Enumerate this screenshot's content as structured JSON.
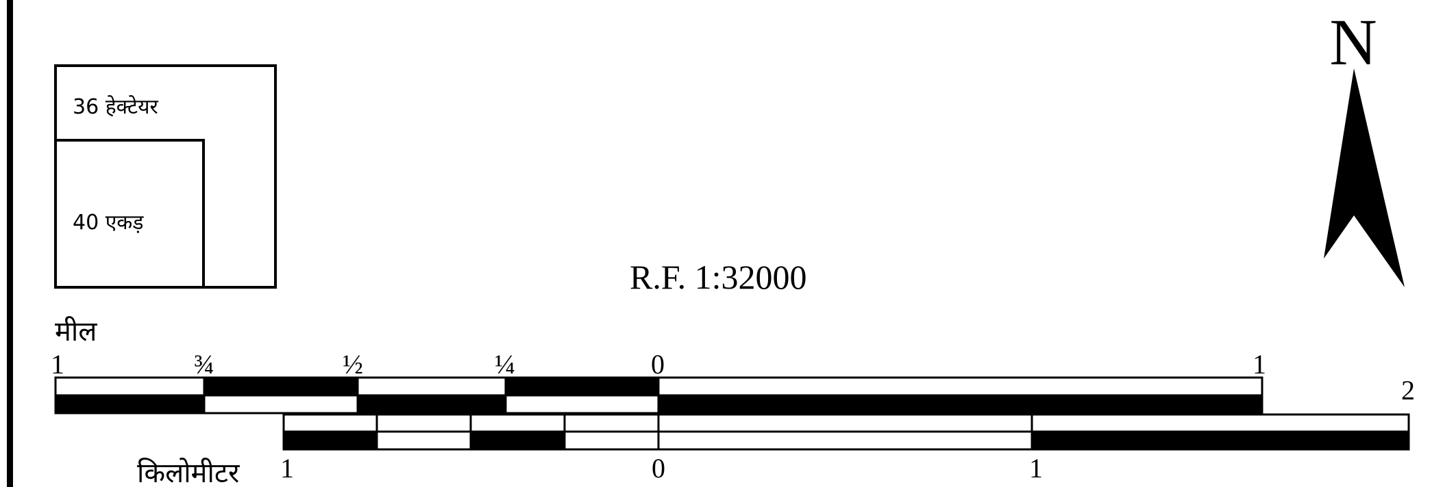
{
  "area_box": {
    "hectare_label": "36 हेक्टेयर",
    "acre_label": "40 एकड़"
  },
  "representative_fraction": "R.F. 1:32000",
  "north_arrow": {
    "letter": "N"
  },
  "mile_scale": {
    "unit_label": "मील",
    "tick_labels": [
      "1",
      "¾",
      "½",
      "¼",
      "0",
      "1",
      "2"
    ]
  },
  "km_scale": {
    "unit_label": "किलोमीटर",
    "tick_labels": [
      "1",
      "0",
      "1"
    ]
  },
  "colors": {
    "ink": "#000000",
    "paper": "#ffffff"
  }
}
